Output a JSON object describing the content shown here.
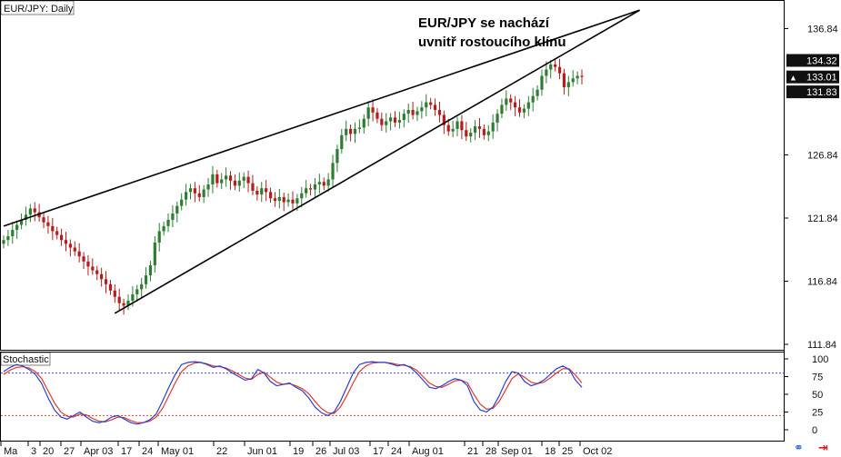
{
  "chart_data": {
    "type": "candlestick",
    "symbol_label": "EUR/JPY: Daily",
    "annotation": [
      "EUR/JPY se nachází",
      "uvnitř rostoucího klínu"
    ],
    "y_ticks": [
      "136.84",
      "126.84",
      "121.84",
      "116.84",
      "111.84"
    ],
    "ylim": [
      111.84,
      138.6
    ],
    "price_badges": [
      {
        "value": "134.32",
        "style": "dark"
      },
      {
        "value": "133.01",
        "style": "dark",
        "marker": "▲"
      },
      {
        "value": "131.83",
        "style": "dark"
      }
    ],
    "x_ticks": [
      "Ma",
      "3",
      "20",
      "27",
      "Apr 03",
      "17",
      "24",
      "May 01",
      "22",
      "Jun 01",
      "19",
      "26",
      "Jul 03",
      "17",
      "24",
      "Aug 01",
      "21",
      "28",
      "Sep 01",
      "18",
      "25",
      "Oct 02"
    ],
    "candles_close": [
      120.1,
      120.4,
      120.9,
      121.3,
      121.7,
      122.1,
      122.6,
      122.3,
      121.9,
      121.5,
      121.2,
      120.8,
      120.5,
      120.1,
      119.8,
      119.5,
      119.2,
      118.8,
      118.4,
      118.0,
      117.7,
      117.4,
      117.0,
      116.6,
      116.1,
      115.6,
      115.1,
      114.9,
      115.3,
      115.8,
      116.2,
      116.6,
      117.3,
      118.1,
      119.9,
      120.8,
      121.2,
      121.7,
      122.2,
      122.8,
      123.3,
      123.9,
      124.2,
      123.8,
      123.5,
      124.1,
      124.5,
      125.3,
      124.6,
      124.9,
      125.2,
      124.8,
      124.4,
      124.8,
      125.1,
      124.6,
      124.0,
      123.7,
      124.2,
      123.9,
      123.4,
      123.2,
      123.5,
      123.1,
      123.3,
      123.0,
      123.4,
      123.8,
      124.2,
      124.1,
      124.5,
      124.7,
      124.4,
      124.9,
      126.2,
      127.3,
      128.4,
      128.9,
      128.5,
      128.9,
      129.0,
      129.7,
      130.6,
      130.2,
      129.7,
      129.2,
      129.5,
      129.8,
      129.4,
      129.6,
      130.1,
      130.4,
      130.0,
      130.3,
      130.6,
      131.0,
      130.8,
      130.4,
      130.0,
      129.2,
      128.7,
      128.9,
      129.5,
      128.8,
      128.3,
      128.6,
      129.1,
      128.9,
      128.4,
      128.7,
      129.4,
      130.1,
      130.8,
      131.3,
      131.0,
      130.6,
      130.2,
      130.5,
      131.0,
      131.5,
      132.0,
      133.1,
      133.6,
      134.0,
      133.8,
      133.3,
      132.2,
      132.6,
      132.9,
      133.1,
      133.01
    ],
    "trendlines": [
      {
        "name": "upper",
        "from": [
          0,
          121.2
        ],
        "to": [
          143,
          138.3
        ]
      },
      {
        "name": "lower",
        "from": [
          25,
          114.3
        ],
        "to": [
          143,
          138.3
        ]
      }
    ],
    "stochastic": {
      "label": "Stochastic",
      "y_ticks": [
        "100",
        "75",
        "50",
        "25",
        "0"
      ],
      "levels": [
        80,
        20
      ],
      "k": [
        82,
        88,
        92,
        90,
        85,
        78,
        65,
        45,
        28,
        18,
        15,
        20,
        25,
        18,
        12,
        10,
        12,
        18,
        20,
        15,
        10,
        8,
        10,
        14,
        22,
        40,
        60,
        78,
        92,
        95,
        96,
        95,
        92,
        88,
        90,
        86,
        80,
        75,
        70,
        72,
        85,
        80,
        68,
        62,
        64,
        66,
        60,
        55,
        45,
        32,
        24,
        20,
        25,
        40,
        60,
        80,
        92,
        95,
        96,
        95,
        95,
        93,
        90,
        92,
        88,
        80,
        70,
        60,
        58,
        62,
        68,
        72,
        70,
        62,
        40,
        28,
        25,
        32,
        48,
        68,
        82,
        80,
        68,
        62,
        65,
        70,
        78,
        86,
        90,
        85,
        70,
        60
      ],
      "d": [
        78,
        84,
        88,
        89,
        87,
        82,
        72,
        55,
        38,
        25,
        19,
        18,
        22,
        21,
        16,
        12,
        11,
        14,
        18,
        17,
        13,
        10,
        10,
        12,
        18,
        30,
        48,
        66,
        82,
        90,
        94,
        95,
        93,
        90,
        89,
        87,
        83,
        78,
        73,
        71,
        78,
        81,
        74,
        67,
        64,
        65,
        62,
        58,
        51,
        40,
        30,
        24,
        23,
        32,
        48,
        66,
        82,
        90,
        94,
        95,
        95,
        94,
        92,
        91,
        89,
        84,
        75,
        66,
        61,
        60,
        64,
        69,
        70,
        66,
        50,
        36,
        29,
        30,
        40,
        56,
        72,
        79,
        74,
        67,
        65,
        67,
        73,
        80,
        86,
        86,
        77,
        66
      ]
    },
    "grid": false,
    "colors": {
      "up": "#2e7d32",
      "down": "#b71c1c",
      "k_line": "#2c3fd0",
      "d_line": "#e03a2a",
      "badge": "#111111",
      "level_upper": "#4046c8",
      "level_lower": "#e04040"
    }
  },
  "toolbar": {
    "icons": [
      "link-icon",
      "close-icon"
    ]
  }
}
